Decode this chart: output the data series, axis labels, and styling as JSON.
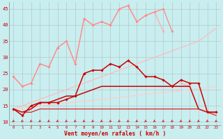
{
  "x": [
    0,
    1,
    2,
    3,
    4,
    5,
    6,
    7,
    8,
    9,
    10,
    11,
    12,
    13,
    14,
    15,
    16,
    17,
    18,
    19,
    20,
    21,
    22,
    23
  ],
  "line_rafales_top": [
    24,
    21,
    22,
    28,
    27,
    33,
    35,
    28,
    42,
    40,
    41,
    40,
    45,
    46,
    41,
    43,
    44,
    45,
    38,
    null,
    null,
    null,
    null,
    null
  ],
  "line_rafales_mid": [
    24,
    21,
    22,
    28,
    27,
    33,
    35,
    28,
    42,
    40,
    41,
    40,
    45,
    46,
    41,
    43,
    44,
    38,
    null,
    22,
    21,
    null,
    null,
    null
  ],
  "line_vent_moy": [
    14,
    12,
    15,
    16,
    16,
    16,
    17,
    18,
    25,
    26,
    26,
    28,
    27,
    29,
    27,
    24,
    24,
    23,
    21,
    23,
    22,
    22,
    13,
    13
  ],
  "line_lower1": [
    14,
    13,
    14,
    16,
    16,
    17,
    18,
    18,
    19,
    20,
    21,
    21,
    21,
    21,
    21,
    21,
    21,
    21,
    21,
    21,
    21,
    14,
    13,
    13
  ],
  "line_lower2": [
    14,
    13,
    13,
    14,
    14,
    14,
    14,
    14,
    14,
    14,
    14,
    14,
    14,
    14,
    14,
    14,
    14,
    14,
    14,
    14,
    14,
    14,
    13,
    12
  ],
  "line_trend_upper": [
    14,
    15,
    16,
    17,
    18,
    19,
    20,
    21,
    22,
    23,
    24,
    25,
    26,
    27,
    28,
    29,
    30,
    31,
    32,
    33,
    34,
    35,
    37,
    39
  ],
  "line_trend_lower": [
    14,
    14.3,
    14.6,
    14.9,
    15.2,
    15.5,
    15.8,
    16.1,
    16.4,
    16.7,
    17.0,
    17.3,
    17.6,
    17.9,
    18.2,
    18.5,
    18.8,
    19.1,
    19.4,
    19.7,
    20.0,
    20.3,
    20.6,
    21.0
  ],
  "bg_color": "#c8eef0",
  "line_rafales_top_color": "#ff8888",
  "line_rafales_mid_color": "#ffaaaa",
  "line_vent_moy_color": "#cc0000",
  "line_lower1_color": "#cc0000",
  "line_lower2_color": "#dd2222",
  "line_trend_upper_color": "#ffbbbb",
  "line_trend_lower_color": "#ffcccc",
  "xlabel": "Vent moyen/en rafales ( km/h )",
  "ylim": [
    9,
    47
  ],
  "xlim": [
    -0.5,
    23.5
  ],
  "yticks": [
    10,
    15,
    20,
    25,
    30,
    35,
    40,
    45
  ],
  "xticks": [
    0,
    1,
    2,
    3,
    4,
    5,
    6,
    7,
    8,
    9,
    10,
    11,
    12,
    13,
    14,
    15,
    16,
    17,
    18,
    19,
    20,
    21,
    22,
    23
  ]
}
